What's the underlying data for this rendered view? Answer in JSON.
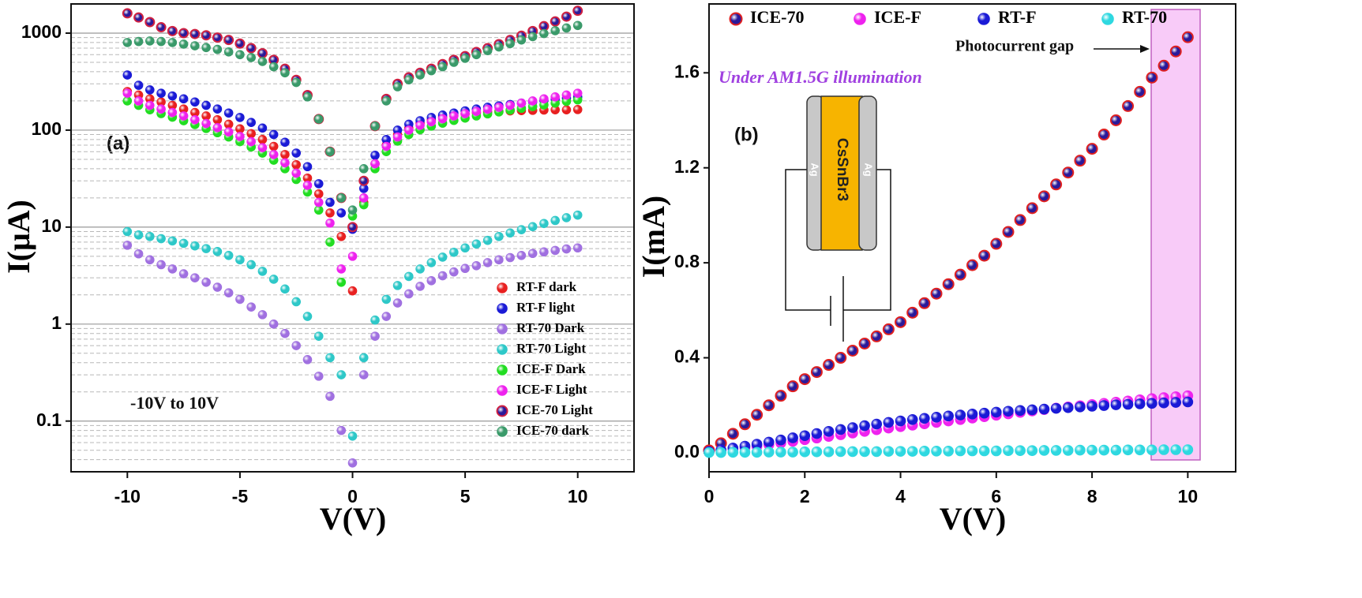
{
  "chart_data": [
    {
      "type": "scatter",
      "panel_label": "(a)",
      "annotation": "-10V to 10V",
      "x_label": "V(V)",
      "y_label": "I(μA)",
      "xlim": [
        -12.5,
        12.5
      ],
      "xticks": [
        -10,
        -5,
        0,
        5,
        10
      ],
      "ylim": [
        0.03,
        2000
      ],
      "log_y": true,
      "grid": true,
      "yticks": [
        0.1,
        1,
        10,
        100,
        1000
      ],
      "minor_yticks": [
        0.04,
        0.05,
        0.06,
        0.07,
        0.08,
        0.09,
        0.2,
        0.3,
        0.4,
        0.5,
        0.6,
        0.7,
        0.8,
        0.9,
        2,
        3,
        4,
        5,
        6,
        7,
        8,
        9,
        20,
        30,
        40,
        50,
        60,
        70,
        80,
        90,
        200,
        300,
        400,
        500,
        600,
        700,
        800,
        900
      ],
      "legend": "lower right",
      "x": [
        -10,
        -9.5,
        -9,
        -8.5,
        -8,
        -7.5,
        -7,
        -6.5,
        -6,
        -5.5,
        -5,
        -4.5,
        -4,
        -3.5,
        -3,
        -2.5,
        -2,
        -1.5,
        -1,
        -0.5,
        0,
        0.5,
        1,
        1.5,
        2,
        2.5,
        3,
        3.5,
        4,
        4.5,
        5,
        5.5,
        6,
        6.5,
        7,
        7.5,
        8,
        8.5,
        9,
        9.5,
        10
      ],
      "series": [
        {
          "name": "RT-F dark",
          "color": "#e82020",
          "values": [
            250,
            230,
            210,
            195,
            180,
            165,
            152,
            140,
            128,
            115,
            103,
            92,
            80,
            68,
            56,
            44,
            32,
            22,
            14,
            8,
            2.2,
            18,
            45,
            70,
            90,
            105,
            118,
            128,
            136,
            142,
            147,
            151,
            154,
            156,
            158,
            159,
            160,
            161,
            162,
            162,
            163
          ]
        },
        {
          "name": "RT-F light",
          "color": "#1a1ad6",
          "values": [
            370,
            290,
            260,
            240,
            225,
            210,
            195,
            180,
            165,
            150,
            135,
            120,
            105,
            90,
            75,
            58,
            42,
            28,
            18,
            14,
            9.5,
            25,
            55,
            80,
            100,
            115,
            125,
            135,
            143,
            150,
            158,
            165,
            172,
            178,
            184,
            190,
            196,
            202,
            208,
            213,
            220
          ]
        },
        {
          "name": "RT-70 Dark",
          "color": "#a070e0",
          "values": [
            6.5,
            5.3,
            4.6,
            4.1,
            3.7,
            3.3,
            3,
            2.7,
            2.4,
            2.1,
            1.8,
            1.5,
            1.25,
            1,
            0.8,
            0.6,
            0.43,
            0.29,
            0.18,
            0.08,
            0.037,
            0.3,
            0.75,
            1.2,
            1.65,
            2.05,
            2.45,
            2.8,
            3.15,
            3.45,
            3.75,
            4,
            4.3,
            4.6,
            4.85,
            5.1,
            5.35,
            5.55,
            5.75,
            5.95,
            6.1
          ]
        },
        {
          "name": "RT-70 Light",
          "color": "#2ec8c8",
          "values": [
            9,
            8.3,
            8,
            7.6,
            7.2,
            6.8,
            6.4,
            6,
            5.6,
            5.1,
            4.6,
            4.1,
            3.5,
            2.9,
            2.3,
            1.7,
            1.2,
            0.75,
            0.45,
            0.3,
            0.07,
            0.45,
            1.1,
            1.8,
            2.5,
            3.1,
            3.7,
            4.3,
            4.9,
            5.5,
            6.1,
            6.7,
            7.3,
            8,
            8.7,
            9.4,
            10.1,
            10.9,
            11.7,
            12.5,
            13.3
          ]
        },
        {
          "name": "ICE-F Dark",
          "color": "#22dd22",
          "values": [
            200,
            180,
            162,
            148,
            136,
            125,
            114,
            104,
            94,
            85,
            76,
            67,
            58,
            49,
            40,
            31,
            23,
            15,
            7,
            2.7,
            13,
            17,
            40,
            60,
            77,
            90,
            101,
            110,
            118,
            126,
            133,
            140,
            147,
            154,
            161,
            168,
            175,
            182,
            190,
            198,
            205
          ]
        },
        {
          "name": "ICE-F Light",
          "color": "#ee22ee",
          "values": [
            240,
            200,
            180,
            165,
            152,
            140,
            128,
            117,
            106,
            96,
            86,
            76,
            66,
            56,
            46,
            36,
            27,
            18,
            11,
            3.7,
            5,
            20,
            45,
            68,
            85,
            100,
            112,
            122,
            131,
            140,
            148,
            156,
            164,
            172,
            180,
            190,
            200,
            210,
            220,
            230,
            240
          ]
        },
        {
          "name": "ICE-70 Light",
          "color": "#2a1a9a",
          "edgecolor": "#d02040",
          "values": [
            1600,
            1450,
            1300,
            1150,
            1050,
            1000,
            980,
            950,
            900,
            850,
            780,
            700,
            620,
            530,
            430,
            330,
            230,
            130,
            60,
            20,
            10,
            30,
            110,
            210,
            300,
            350,
            390,
            430,
            480,
            530,
            580,
            640,
            700,
            770,
            850,
            940,
            1050,
            1180,
            1320,
            1480,
            1700
          ]
        },
        {
          "name": "ICE-70 dark",
          "color": "#3a9a6a",
          "values": [
            800,
            820,
            830,
            820,
            800,
            770,
            740,
            710,
            680,
            640,
            600,
            560,
            510,
            450,
            390,
            310,
            220,
            130,
            60,
            20,
            15,
            40,
            110,
            200,
            280,
            330,
            370,
            410,
            450,
            500,
            550,
            600,
            660,
            720,
            780,
            850,
            920,
            990,
            1060,
            1130,
            1200
          ]
        }
      ]
    },
    {
      "type": "scatter",
      "panel_label": "(b)",
      "annotations": [
        "Under AM1.5G illumination",
        "Photocurrent gap"
      ],
      "inset_labels": [
        "CsSnBr3",
        "Ag",
        "Ag"
      ],
      "x_label": "V(V)",
      "y_label": "I(mA)",
      "xlim": [
        0,
        11
      ],
      "xticks": [
        0,
        2,
        4,
        6,
        8,
        10
      ],
      "ylim": [
        -0.08,
        1.89
      ],
      "log_y": false,
      "grid": false,
      "yticks": [
        {
          "value": 0,
          "label": "0.0"
        },
        0.4,
        0.8,
        1.2,
        1.6
      ],
      "legend": "top",
      "x": [
        0,
        0.25,
        0.5,
        0.75,
        1,
        1.25,
        1.5,
        1.75,
        2,
        2.25,
        2.5,
        2.75,
        3,
        3.25,
        3.5,
        3.75,
        4,
        4.25,
        4.5,
        4.75,
        5,
        5.25,
        5.5,
        5.75,
        6,
        6.25,
        6.5,
        6.75,
        7,
        7.25,
        7.5,
        7.75,
        8,
        8.25,
        8.5,
        8.75,
        9,
        9.25,
        9.5,
        9.75,
        10
      ],
      "series": [
        {
          "name": "ICE-70",
          "color": "#2a1a9a",
          "edgecolor": "#e02020",
          "values": [
            0.01,
            0.04,
            0.08,
            0.12,
            0.16,
            0.2,
            0.24,
            0.28,
            0.31,
            0.34,
            0.37,
            0.4,
            0.43,
            0.46,
            0.49,
            0.52,
            0.55,
            0.59,
            0.63,
            0.67,
            0.71,
            0.75,
            0.79,
            0.83,
            0.88,
            0.93,
            0.98,
            1.03,
            1.08,
            1.13,
            1.18,
            1.23,
            1.28,
            1.34,
            1.4,
            1.46,
            1.52,
            1.58,
            1.63,
            1.69,
            1.75
          ]
        },
        {
          "name": "ICE-F",
          "color": "#ee22ee",
          "values": [
            0.005,
            0.01,
            0.015,
            0.02,
            0.027,
            0.034,
            0.041,
            0.048,
            0.055,
            0.062,
            0.069,
            0.076,
            0.083,
            0.09,
            0.097,
            0.104,
            0.11,
            0.116,
            0.122,
            0.128,
            0.134,
            0.14,
            0.146,
            0.152,
            0.158,
            0.164,
            0.17,
            0.176,
            0.182,
            0.188,
            0.193,
            0.198,
            0.203,
            0.208,
            0.213,
            0.218,
            0.223,
            0.228,
            0.232,
            0.236,
            0.24
          ]
        },
        {
          "name": "RT-F",
          "color": "#1a1ad6",
          "values": [
            0.005,
            0.012,
            0.02,
            0.028,
            0.036,
            0.045,
            0.054,
            0.063,
            0.072,
            0.081,
            0.09,
            0.098,
            0.106,
            0.114,
            0.121,
            0.128,
            0.134,
            0.14,
            0.145,
            0.15,
            0.155,
            0.159,
            0.163,
            0.167,
            0.171,
            0.175,
            0.178,
            0.181,
            0.184,
            0.187,
            0.19,
            0.193,
            0.196,
            0.199,
            0.202,
            0.204,
            0.206,
            0.208,
            0.21,
            0.212,
            0.214
          ]
        },
        {
          "name": "RT-70",
          "color": "#2ed8e0",
          "values": [
            0.001,
            0.001,
            0.002,
            0.002,
            0.002,
            0.003,
            0.003,
            0.003,
            0.004,
            0.004,
            0.004,
            0.005,
            0.005,
            0.005,
            0.005,
            0.006,
            0.006,
            0.006,
            0.007,
            0.007,
            0.007,
            0.008,
            0.008,
            0.008,
            0.008,
            0.009,
            0.009,
            0.009,
            0.01,
            0.01,
            0.01,
            0.011,
            0.011,
            0.011,
            0.011,
            0.012,
            0.012,
            0.012,
            0.013,
            0.013,
            0.013
          ]
        }
      ]
    }
  ]
}
